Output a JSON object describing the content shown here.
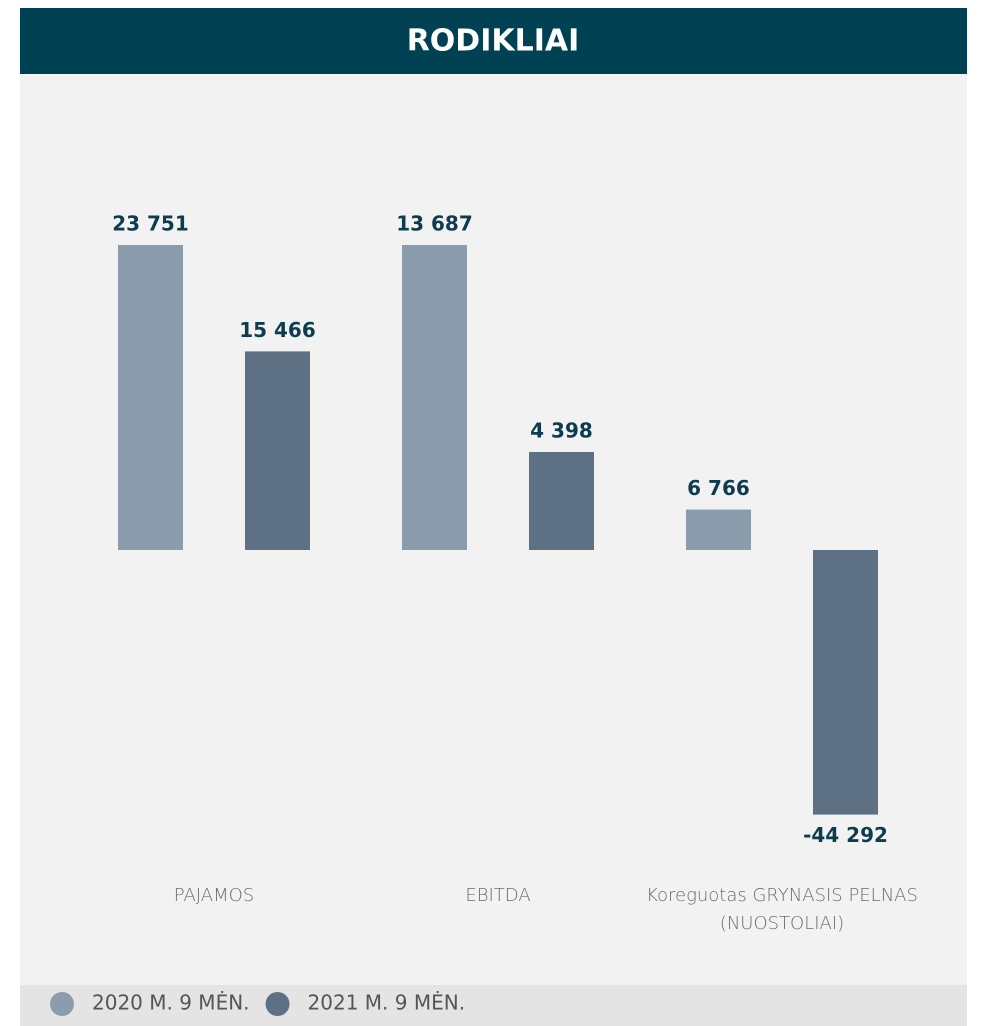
{
  "chart_data": {
    "type": "bar",
    "title": "RODIKLIAI",
    "categories": [
      "PAJAMOS",
      "EBITDA",
      "Koreguotas GRYNASIS PELNAS (NUOSTOLIAI)"
    ],
    "series": [
      {
        "name": "2020 M. 9 MĖN.",
        "color": "#8b9dad",
        "values": [
          23751,
          13687,
          6766
        ],
        "value_labels": [
          "23 751",
          "13 687",
          "6 766"
        ]
      },
      {
        "name": "2021 M. 9 MĖN.",
        "color": "#5e7084",
        "values": [
          15466,
          4398,
          -44292
        ],
        "value_labels": [
          "15 466",
          "4 398",
          "-44 292"
        ]
      }
    ],
    "legend": "bottom"
  }
}
